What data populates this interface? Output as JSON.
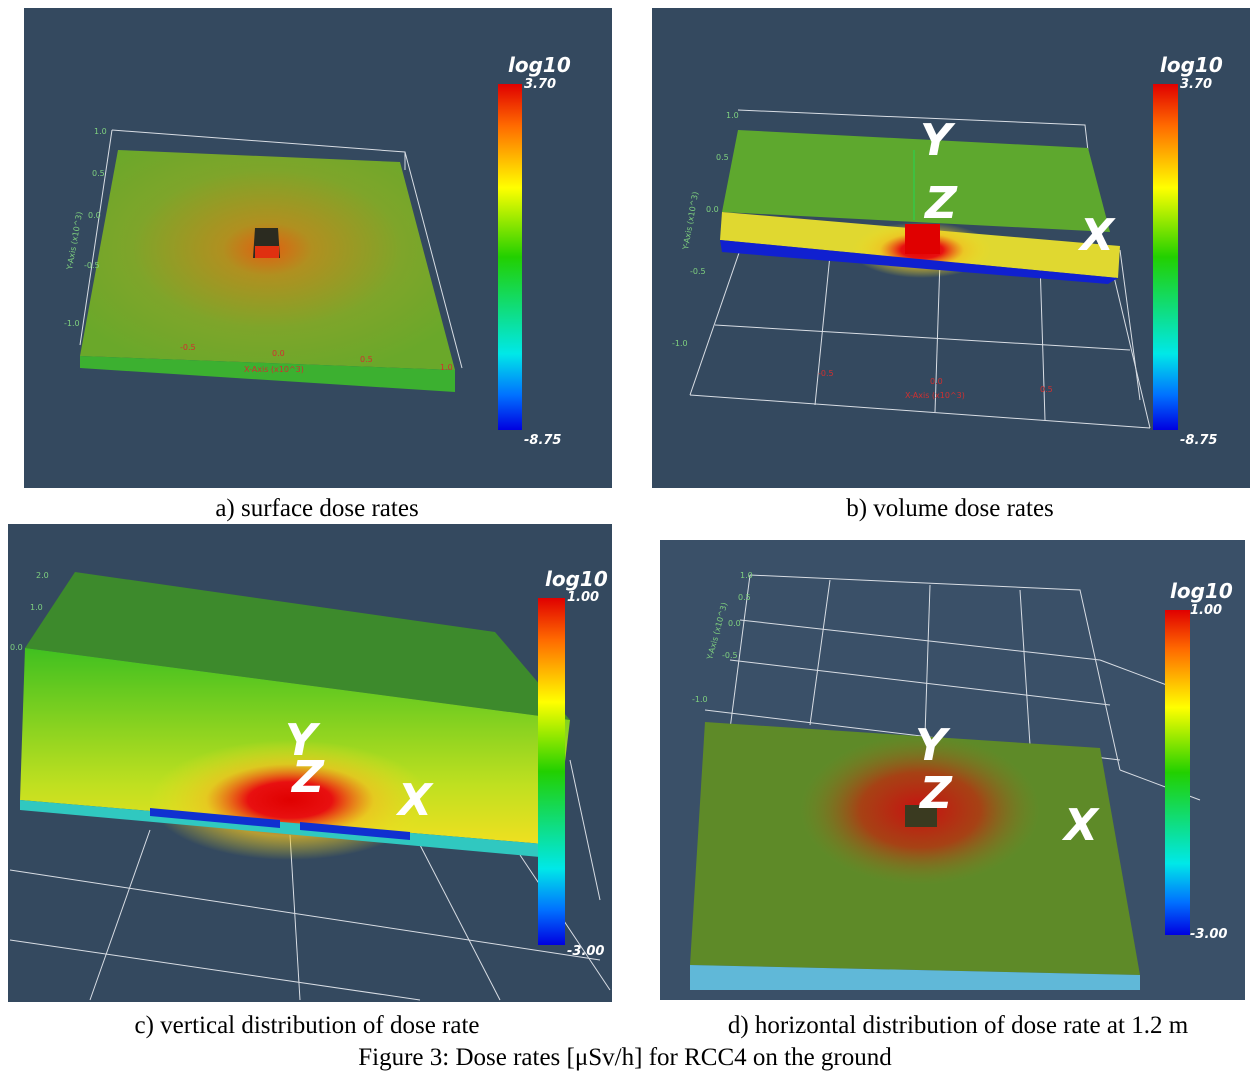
{
  "panels": [
    {
      "caption": "a) surface dose rates",
      "colorbar": {
        "title": "log10",
        "max": {
          "value": 3.7,
          "label": "3.70"
        },
        "min": {
          "value": -8.75,
          "label": "-8.75"
        }
      },
      "yaxis_title": "Y-Axis (x10^3)",
      "xaxis_title": "X-Axis (x10^3)",
      "yticks": [
        "1.0",
        "0.5",
        "0.0",
        "-0.5",
        "-1.0"
      ],
      "xticks": [
        "-0.5",
        "0.0",
        "0.5",
        "1.0"
      ]
    },
    {
      "caption": "b) volume dose rates",
      "colorbar": {
        "title": "log10",
        "max": {
          "value": 3.7,
          "label": "3.70"
        },
        "min": {
          "value": -8.75,
          "label": "-8.75"
        }
      },
      "yaxis_title": "Y-Axis (x10^3)",
      "xaxis_title": "X-Axis (x10^3)",
      "yticks": [
        "1.0",
        "0.5",
        "0.0",
        "-0.5",
        "-1.0"
      ],
      "xticks": [
        "-0.5",
        "0.0",
        "0.5"
      ],
      "axis_letters": [
        "Y",
        "Z",
        "X"
      ]
    },
    {
      "caption": "c) vertical distribution of dose rate",
      "colorbar": {
        "title": "log10",
        "max": {
          "value": 1.0,
          "label": "1.00"
        },
        "min": {
          "value": -3.0,
          "label": "-3.00"
        }
      },
      "yticks": [
        "2.0",
        "1.0",
        "0.0"
      ],
      "axis_letters": [
        "Y",
        "Z",
        "X"
      ]
    },
    {
      "caption": "d) horizontal distribution of dose rate at 1.2 m",
      "colorbar": {
        "title": "log10",
        "max": {
          "value": 1.0,
          "label": "1.00"
        },
        "min": {
          "value": -3.0,
          "label": "-3.00"
        }
      },
      "yaxis_title": "Y-Axis (x10^3)",
      "yticks": [
        "1.0",
        "0.5",
        "0.0",
        "-0.5",
        "-1.0"
      ],
      "axis_letters": [
        "Y",
        "Z",
        "X"
      ]
    }
  ],
  "figure_caption": "Figure 3: Dose rates [μSv/h] for RCC4 on the ground"
}
